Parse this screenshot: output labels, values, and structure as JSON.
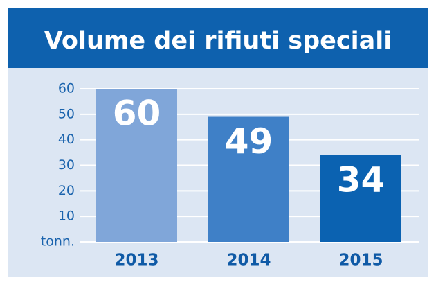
{
  "chart_data": {
    "type": "bar",
    "title": "Volume dei rifiuti speciali",
    "categories": [
      "2013",
      "2014",
      "2015"
    ],
    "values": [
      60,
      49,
      34
    ],
    "colors": [
      "#80a6d9",
      "#3f80c7",
      "#0b62b1"
    ],
    "ylim": [
      0,
      60
    ],
    "yticks": [
      {
        "value": 0,
        "label": "tonn."
      },
      10,
      20,
      30,
      40,
      50,
      60
    ],
    "grid": true
  }
}
